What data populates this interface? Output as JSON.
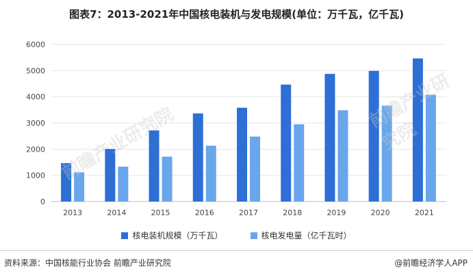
{
  "title": "图表7：2013-2021年中国核电装机与发电规模(单位：万千瓦，亿千瓦)",
  "colors": {
    "series1": "#2e6fd6",
    "series2": "#6aa6ec",
    "grid": "#e6e6e6"
  },
  "chart_data": {
    "type": "bar",
    "categories": [
      "2013",
      "2014",
      "2015",
      "2016",
      "2017",
      "2018",
      "2019",
      "2020",
      "2021"
    ],
    "series": [
      {
        "name": "核电装机规模（万千瓦）",
        "values": [
          1466,
          2008,
          2717,
          3364,
          3582,
          4466,
          4874,
          4989,
          5465
        ]
      },
      {
        "name": "核电发电量（亿千瓦时）",
        "values": [
          1115,
          1332,
          1714,
          2132,
          2481,
          2950,
          3487,
          3662,
          4075
        ]
      }
    ],
    "ylim": [
      0,
      6000
    ],
    "yticks": [
      0,
      1000,
      2000,
      3000,
      4000,
      5000,
      6000
    ],
    "legend": "bottom"
  },
  "footer": {
    "source": "资料来源：中国核能行业协会 前瞻产业研究院",
    "brand": "@前瞻经济学人APP"
  },
  "watermark": {
    "line1": "前瞻产业研究院"
  }
}
